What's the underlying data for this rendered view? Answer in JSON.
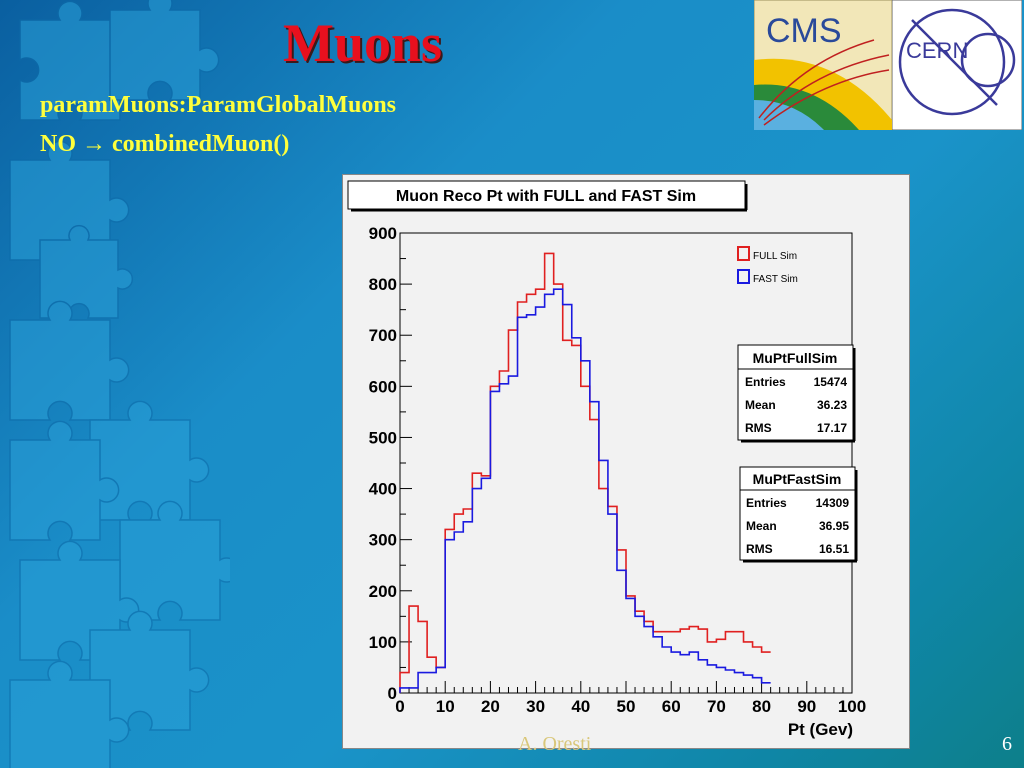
{
  "slide": {
    "title": "Muons",
    "subtitle_line1": "paramMuons:ParamGlobalMuons",
    "subtitle_line2_prefix": "NO",
    "subtitle_line2_arrow": "→",
    "subtitle_line2_suffix": "combinedMuon()",
    "page_number": "6",
    "footer_author": "A. Oresti"
  },
  "logos": {
    "cms_text": "CMS",
    "cern_text": "CERN"
  },
  "colors": {
    "title": "#e8101e",
    "subtitle": "#ffff3c",
    "full_sim": "#e02020",
    "fast_sim": "#1a1ae0"
  },
  "chart_data": {
    "type": "histogram",
    "title": "Muon Reco Pt with FULL and FAST Sim",
    "xlabel": "Pt (Gev)",
    "ylabel": "",
    "xlim": [
      0,
      100
    ],
    "ylim": [
      0,
      900
    ],
    "x_ticks": [
      0,
      10,
      20,
      30,
      40,
      50,
      60,
      70,
      80,
      90,
      100
    ],
    "y_ticks": [
      0,
      100,
      200,
      300,
      400,
      500,
      600,
      700,
      800,
      900
    ],
    "bin_width": 2,
    "bin_edges_start": 0,
    "legend": {
      "position": "top-right"
    },
    "series": [
      {
        "name": "FULL Sim",
        "color": "#e02020",
        "values": [
          40,
          170,
          140,
          70,
          50,
          320,
          350,
          360,
          430,
          425,
          600,
          630,
          710,
          765,
          780,
          790,
          860,
          800,
          690,
          680,
          600,
          535,
          400,
          365,
          280,
          190,
          160,
          140,
          120,
          120,
          120,
          125,
          130,
          125,
          100,
          105,
          120,
          120,
          100,
          90,
          80
        ]
      },
      {
        "name": "FAST Sim",
        "color": "#1a1ae0",
        "values": [
          10,
          10,
          40,
          40,
          50,
          300,
          315,
          335,
          400,
          420,
          590,
          605,
          620,
          735,
          740,
          755,
          780,
          790,
          760,
          695,
          650,
          570,
          455,
          350,
          240,
          185,
          150,
          130,
          110,
          90,
          80,
          75,
          80,
          65,
          55,
          50,
          45,
          40,
          35,
          30,
          20
        ]
      }
    ],
    "stat_boxes": [
      {
        "name": "MuPtFullSim",
        "rows": [
          {
            "label": "Entries",
            "value": "15474"
          },
          {
            "label": "Mean",
            "value": "36.23"
          },
          {
            "label": "RMS",
            "value": "17.17"
          }
        ]
      },
      {
        "name": "MuPtFastSim",
        "rows": [
          {
            "label": "Entries",
            "value": "14309"
          },
          {
            "label": "Mean",
            "value": "36.95"
          },
          {
            "label": "RMS",
            "value": "16.51"
          }
        ]
      }
    ]
  }
}
